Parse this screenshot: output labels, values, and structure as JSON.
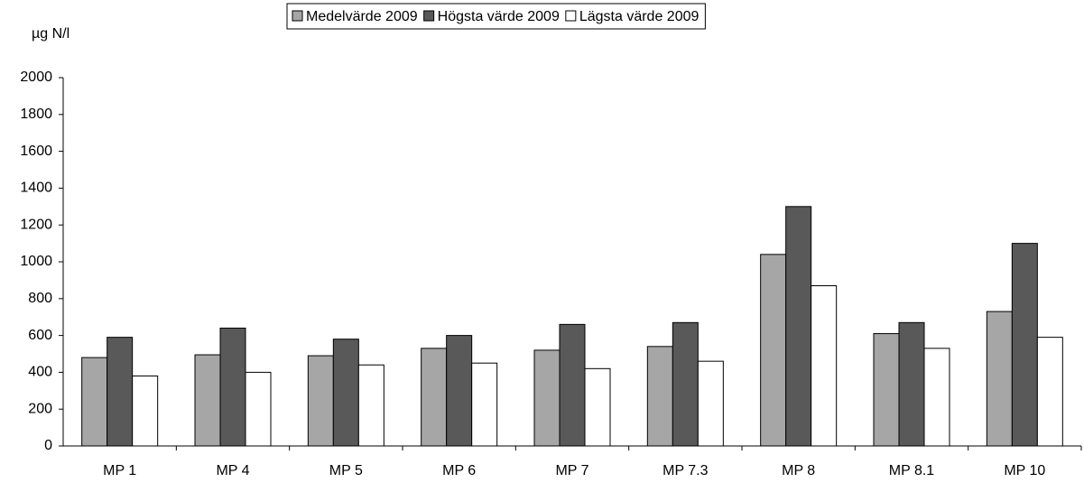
{
  "chart_data": {
    "type": "bar",
    "y_label": "µg N/l",
    "categories": [
      "MP 1",
      "MP 4",
      "MP 5",
      "MP 6",
      "MP 7",
      "MP 7.3",
      "MP 8",
      "MP 8.1",
      "MP 10"
    ],
    "series": [
      {
        "name": "Medelvärde 2009",
        "color": "#a6a6a6",
        "values": [
          480,
          495,
          490,
          530,
          520,
          540,
          1040,
          610,
          730
        ]
      },
      {
        "name": "Högsta värde 2009",
        "color": "#595959",
        "values": [
          590,
          640,
          580,
          600,
          660,
          670,
          1300,
          670,
          1100
        ]
      },
      {
        "name": "Lägsta värde 2009",
        "color": "#ffffff",
        "values": [
          380,
          400,
          440,
          450,
          420,
          460,
          870,
          530,
          590
        ]
      }
    ],
    "ylim": [
      0,
      2000
    ],
    "yticks": [
      0,
      200,
      400,
      600,
      800,
      1000,
      1200,
      1400,
      1600,
      1800,
      2000
    ],
    "grid": false,
    "legend": "top"
  }
}
